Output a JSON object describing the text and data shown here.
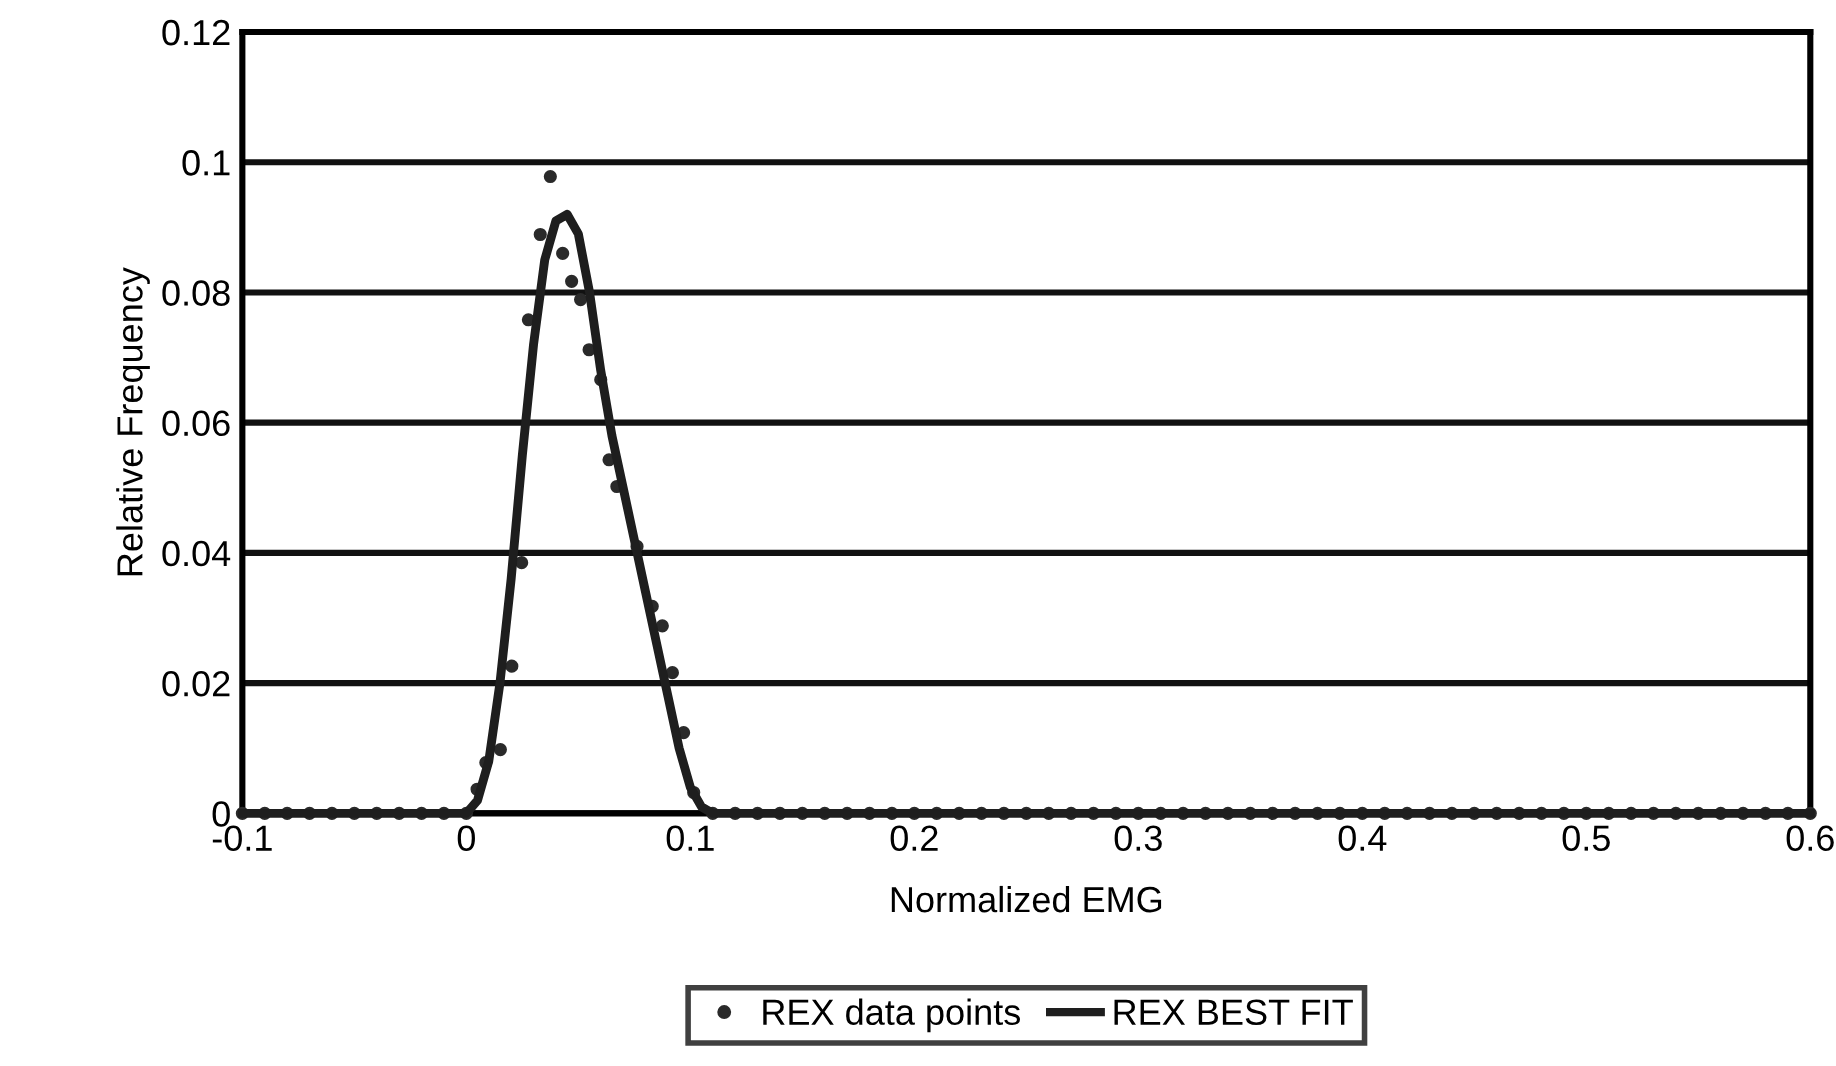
{
  "chart_data": {
    "type": "scatter",
    "xlabel": "Normalized EMG",
    "ylabel": "Relative Frequency",
    "xlim": [
      -0.1,
      0.6
    ],
    "xticks": [
      -0.1,
      0,
      0.1,
      0.2,
      0.3,
      0.4,
      0.5,
      0.6
    ],
    "ylim": [
      0,
      0.12
    ],
    "yticks": [
      0,
      0.02,
      0.04,
      0.06,
      0.08,
      0.1,
      0.12
    ],
    "grid": "y",
    "legend": "bottom",
    "series": [
      {
        "name": "REX data points",
        "marker": "circle",
        "color": "#2a2a2a",
        "x": [
          -0.1,
          -0.09,
          -0.08,
          -0.07,
          -0.06,
          -0.05,
          -0.04,
          -0.03,
          -0.02,
          -0.01,
          0.0,
          0.0048,
          0.0087,
          0.0152,
          0.0203,
          0.0247,
          0.0277,
          0.033,
          0.0375,
          0.043,
          0.047,
          0.051,
          0.0548,
          0.06,
          0.0637,
          0.0672,
          0.0762,
          0.083,
          0.0875,
          0.092,
          0.097,
          0.1015,
          0.11,
          0.12,
          0.13,
          0.14,
          0.15,
          0.16,
          0.17,
          0.18,
          0.19,
          0.2,
          0.21,
          0.22,
          0.23,
          0.24,
          0.25,
          0.26,
          0.27,
          0.28,
          0.29,
          0.3,
          0.31,
          0.32,
          0.33,
          0.34,
          0.35,
          0.36,
          0.37,
          0.38,
          0.39,
          0.4,
          0.41,
          0.42,
          0.43,
          0.44,
          0.45,
          0.46,
          0.47,
          0.48,
          0.49,
          0.5,
          0.51,
          0.52,
          0.53,
          0.54,
          0.55,
          0.56,
          0.57,
          0.58,
          0.59,
          0.6
        ],
        "values": [
          0,
          0,
          0,
          0,
          0,
          0,
          0,
          0,
          0,
          0,
          0,
          0.0037,
          0.0078,
          0.0098,
          0.0226,
          0.0385,
          0.0758,
          0.0889,
          0.0978,
          0.086,
          0.0817,
          0.0789,
          0.0712,
          0.0666,
          0.0543,
          0.0502,
          0.041,
          0.0318,
          0.0288,
          0.0216,
          0.0124,
          0.0032,
          0,
          0,
          0,
          0,
          0,
          0,
          0,
          0,
          0,
          0,
          0,
          0,
          0,
          0,
          0,
          0,
          0,
          0,
          0,
          0,
          0,
          0,
          0,
          0,
          0,
          0,
          0,
          0,
          0,
          0,
          0,
          0,
          0,
          0,
          0,
          0,
          0,
          0,
          0,
          0,
          0,
          0,
          0,
          0,
          0,
          0,
          0,
          0,
          0,
          0
        ]
      },
      {
        "name": "REX BEST FIT",
        "type": "line",
        "line_style": "solid",
        "color": "#1e1e1e",
        "x": [
          -0.1,
          0.0,
          0.005,
          0.01,
          0.015,
          0.02,
          0.025,
          0.03,
          0.035,
          0.04,
          0.045,
          0.05,
          0.055,
          0.06,
          0.065,
          0.07,
          0.075,
          0.08,
          0.085,
          0.09,
          0.095,
          0.1,
          0.105,
          0.11,
          0.6
        ],
        "values": [
          0,
          0,
          0.002,
          0.008,
          0.02,
          0.036,
          0.055,
          0.072,
          0.085,
          0.091,
          0.092,
          0.089,
          0.08,
          0.068,
          0.058,
          0.05,
          0.042,
          0.034,
          0.026,
          0.018,
          0.01,
          0.004,
          0.001,
          0,
          0
        ]
      }
    ]
  }
}
